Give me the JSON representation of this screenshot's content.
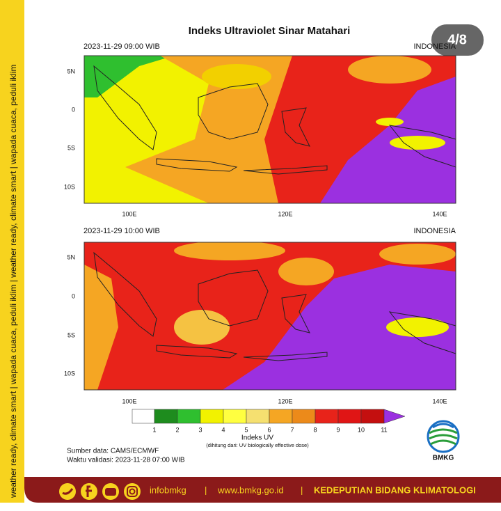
{
  "side_banner": "weather ready, climate smart | wapada cuaca, peduli iklim | weather ready, climate smart | wapada cuaca, peduli iklim",
  "page_indicator": "4/8",
  "title": "Indeks Ultraviolet Sinar Matahari",
  "panels": [
    {
      "timestamp": "2023-11-29  09:00 WIB",
      "region": "INDONESIA",
      "lat_labels": [
        "5N",
        "0",
        "5S",
        "10S"
      ],
      "lon_labels": [
        "100E",
        "120E",
        "140E"
      ]
    },
    {
      "timestamp": "2023-11-29  10:00 WIB",
      "region": "INDONESIA",
      "lat_labels": [
        "5N",
        "0",
        "5S",
        "10S"
      ],
      "lon_labels": [
        "100E",
        "120E",
        "140E"
      ]
    }
  ],
  "colorbar": {
    "title": "Indeks UV",
    "subtitle": "(dihitung dari: UV biologically effective dose)",
    "labels": [
      "1",
      "2",
      "3",
      "4",
      "5",
      "6",
      "7",
      "8",
      "9",
      "10",
      "11"
    ],
    "colors": [
      "#ffffff",
      "#1e8c1e",
      "#2fbf2f",
      "#f2f200",
      "#ffff40",
      "#f5e070",
      "#f5a623",
      "#ec8a1a",
      "#e8231a",
      "#e01515",
      "#c40f0f",
      "#9b30e0"
    ]
  },
  "source": "Sumber data: CAMS/ECMWF",
  "validity": "Waktu validasi: 2023-11-28 07:00 WIB",
  "logo_label": "BMKG",
  "footer": {
    "handle": "infobmkg",
    "separator": "|",
    "website": "www.bmkg.go.id",
    "department": "KEDEPUTIAN BIDANG KLIMATOLOGI"
  }
}
